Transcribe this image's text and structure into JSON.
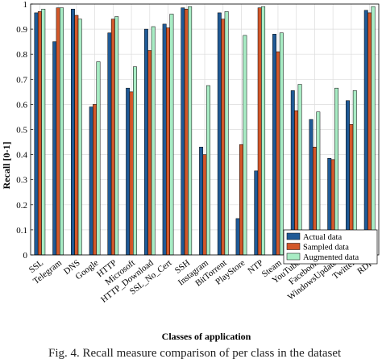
{
  "chart_data": {
    "type": "bar",
    "title": "",
    "xlabel": "Classes of application",
    "ylabel": "Recall [0-1]",
    "ylim": [
      0,
      1
    ],
    "yticks": [
      "0",
      "0.1",
      "0.2",
      "0.3",
      "0.4",
      "0.5",
      "0.6",
      "0.7",
      "0.8",
      "0.9",
      "1"
    ],
    "grid": true,
    "legend_position": "bottom-right",
    "categories": [
      "SSL",
      "Telegram",
      "DNS",
      "Google",
      "HTTP",
      "Microsoft",
      "HTTP_Download",
      "SSL_No_Cert",
      "SSH",
      "Instagram",
      "BitTorrent",
      "PlayStore",
      "NTP",
      "Steam",
      "YouTube",
      "Facebook",
      "WindowsUpdate",
      "Twitter",
      "RDP"
    ],
    "series": [
      {
        "name": "Actual data",
        "color": "#1f5a96",
        "values": [
          0.965,
          0.85,
          0.98,
          0.59,
          0.885,
          0.665,
          0.9,
          0.92,
          0.985,
          0.43,
          0.965,
          0.145,
          0.335,
          0.88,
          0.655,
          0.54,
          0.385,
          0.615,
          0.975
        ]
      },
      {
        "name": "Sampled data",
        "color": "#d2572a",
        "values": [
          0.97,
          0.985,
          0.955,
          0.6,
          0.94,
          0.65,
          0.815,
          0.905,
          0.98,
          0.4,
          0.94,
          0.44,
          0.985,
          0.81,
          0.575,
          0.43,
          0.38,
          0.52,
          0.965
        ]
      },
      {
        "name": "Augmented data",
        "color": "#a8ecc4",
        "values": [
          0.98,
          0.985,
          0.94,
          0.77,
          0.95,
          0.75,
          0.91,
          0.96,
          0.99,
          0.675,
          0.97,
          0.875,
          0.99,
          0.885,
          0.68,
          0.57,
          0.665,
          0.655,
          0.99
        ]
      }
    ]
  },
  "caption": "Fig. 4. Recall measure comparison of per class in the dataset"
}
